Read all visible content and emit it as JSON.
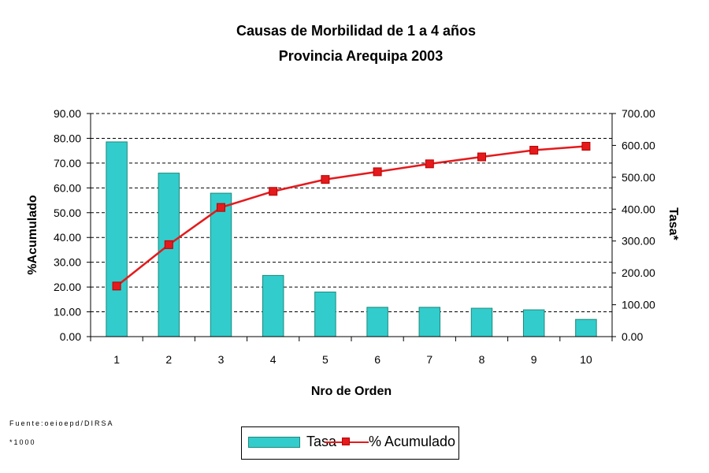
{
  "chart_data": {
    "type": "bar",
    "title": "Causas de Morbilidad de 1 a 4 años",
    "subtitle": "Provincia Arequipa 2003",
    "xlabel": "Nro de Orden",
    "ylabel_left": "%Acumulado",
    "ylabel_right": "Tasa*",
    "categories": [
      "1",
      "2",
      "3",
      "4",
      "5",
      "6",
      "7",
      "8",
      "9",
      "10"
    ],
    "left_axis": {
      "ylim": [
        0,
        90
      ],
      "ticks": [
        "0.00",
        "10.00",
        "20.00",
        "30.00",
        "40.00",
        "50.00",
        "60.00",
        "70.00",
        "80.00",
        "90.00"
      ]
    },
    "right_axis": {
      "ylim": [
        0,
        700
      ],
      "ticks": [
        "0.00",
        "100.00",
        "200.00",
        "300.00",
        "400.00",
        "500.00",
        "600.00",
        "700.00"
      ]
    },
    "series": [
      {
        "name": "Tasa",
        "kind": "bar",
        "axis": "right",
        "values": [
          611,
          513,
          450,
          192,
          140,
          92,
          92,
          89,
          84,
          54
        ]
      },
      {
        "name": "% Acumulado",
        "kind": "line",
        "axis": "left",
        "values": [
          20.4,
          37.1,
          52.1,
          58.6,
          63.4,
          66.5,
          69.7,
          72.5,
          75.2,
          76.8
        ]
      }
    ],
    "gridlines": "horizontal dashed",
    "legend_position": "bottom",
    "colors": {
      "bar": "#33cccc",
      "bar_border": "#1b8a7a",
      "line": "#e41a1c"
    }
  },
  "footnotes": {
    "source": "Fuente:oeioepd/DIRSA",
    "note": "*1000"
  }
}
